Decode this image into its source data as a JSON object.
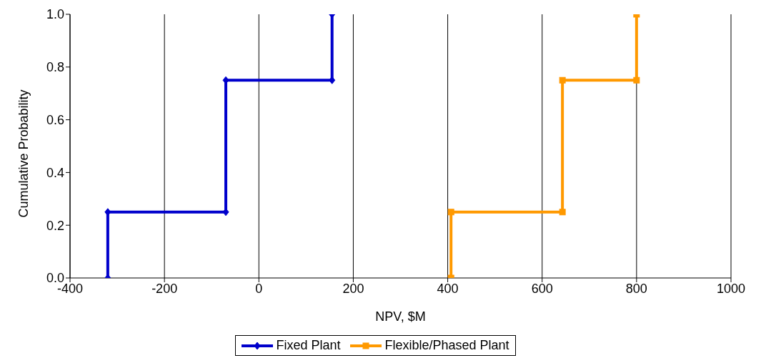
{
  "chart_data": {
    "type": "line",
    "xlabel": "NPV, $M",
    "ylabel": "Cumulative Probability",
    "xlim": [
      -400,
      1000
    ],
    "xticks": [
      -400,
      -200,
      0,
      200,
      400,
      600,
      800,
      1000
    ],
    "ylim": [
      0,
      1
    ],
    "yticks": [
      {
        "value": 0,
        "label": "0.0"
      },
      {
        "value": 0.2,
        "label": "0.2"
      },
      {
        "value": 0.4,
        "label": "0.4"
      },
      {
        "value": 0.6,
        "label": "0.6"
      },
      {
        "value": 0.8,
        "label": "0.8"
      },
      {
        "value": 1,
        "label": "1.0"
      }
    ],
    "grid": "x",
    "legend": "bottom",
    "line_style": "solid",
    "series": [
      {
        "name": "Fixed Plant",
        "color": "#0000cc",
        "marker": "diamond",
        "x": [
          -320,
          -320,
          -70,
          -70,
          155,
          155
        ],
        "values": [
          0,
          0.25,
          0.25,
          0.75,
          0.75,
          1
        ]
      },
      {
        "name": "Flexible/Phased Plant",
        "color": "#ff9900",
        "marker": "square",
        "x": [
          407,
          407,
          643,
          643,
          800,
          800
        ],
        "values": [
          0,
          0.25,
          0.25,
          0.75,
          0.75,
          1
        ]
      }
    ]
  }
}
